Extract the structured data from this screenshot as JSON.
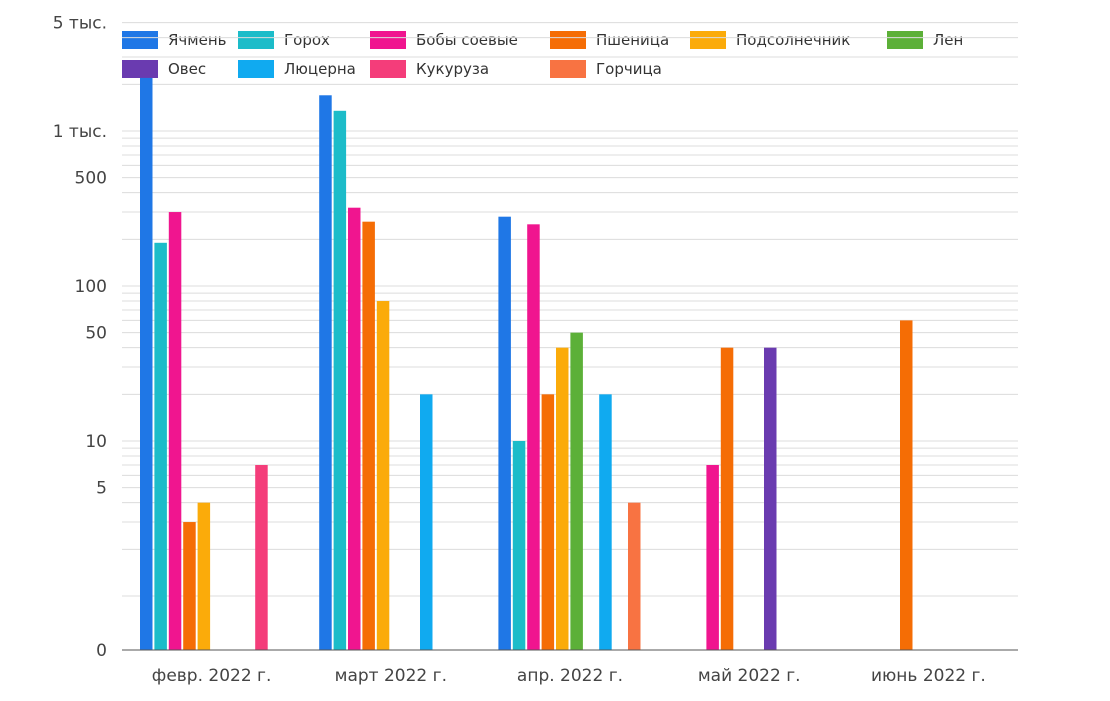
{
  "chart_data": {
    "type": "bar",
    "scale": "log",
    "grid": true,
    "legend_position": "top",
    "categories": [
      "февр. 2022 г.",
      "март 2022 г.",
      "апр. 2022 г.",
      "май 2022 г.",
      "июнь 2022 г."
    ],
    "y_tick_labels": [
      {
        "value": 5000,
        "label": "5 тыс."
      },
      {
        "value": 1000,
        "label": "1 тыс."
      },
      {
        "value": 500,
        "label": "500"
      },
      {
        "value": 100,
        "label": "100"
      },
      {
        "value": 50,
        "label": "50"
      },
      {
        "value": 10,
        "label": "10"
      },
      {
        "value": 5,
        "label": "5"
      },
      {
        "value": 0,
        "label": "0"
      }
    ],
    "series": [
      {
        "name": "Ячмень",
        "color": "#1f77e6",
        "values": [
          2200,
          1700,
          280,
          null,
          null
        ]
      },
      {
        "name": "Горох",
        "color": "#1cbcc9",
        "values": [
          190,
          1350,
          10,
          null,
          null
        ]
      },
      {
        "name": "Бобы соевые",
        "color": "#f0158f",
        "values": [
          300,
          320,
          250,
          7,
          null
        ]
      },
      {
        "name": "Пшеница",
        "color": "#f56d05",
        "values": [
          3,
          260,
          20,
          40,
          60
        ]
      },
      {
        "name": "Подсолнечник",
        "color": "#fbab0a",
        "values": [
          4,
          80,
          40,
          null,
          null
        ]
      },
      {
        "name": "Лен",
        "color": "#5cb038",
        "values": [
          null,
          null,
          50,
          null,
          null
        ]
      },
      {
        "name": "Овес",
        "color": "#6a3bb0",
        "values": [
          null,
          null,
          null,
          40,
          null
        ]
      },
      {
        "name": "Люцерна",
        "color": "#10aaf0",
        "values": [
          null,
          20,
          20,
          null,
          null
        ]
      },
      {
        "name": "Кукуруза",
        "color": "#f43d7a",
        "values": [
          7,
          null,
          null,
          null,
          null
        ]
      },
      {
        "name": "Горчица",
        "color": "#f87342",
        "values": [
          null,
          null,
          4,
          null,
          null
        ]
      }
    ]
  }
}
